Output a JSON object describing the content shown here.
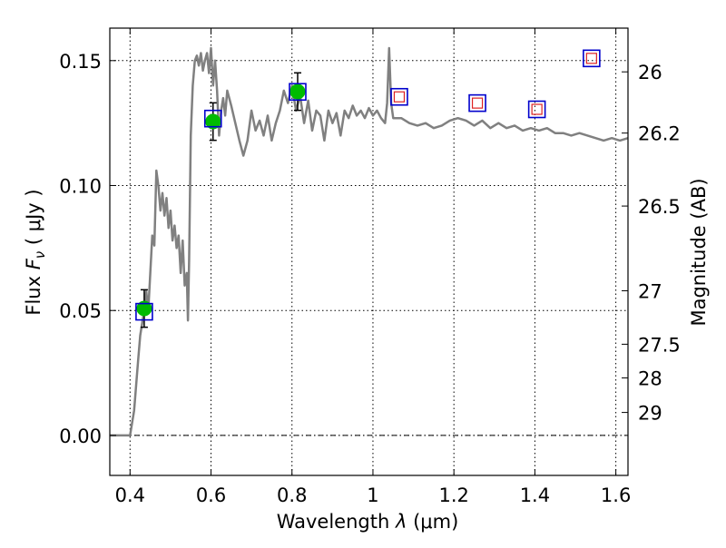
{
  "chart_data": {
    "type": "scatter",
    "xlabel_prefix": "Wavelength ",
    "xlabel_symbol": "λ",
    "xlabel_unit": " (μm)",
    "ylabel_prefix": "Flux ",
    "ylabel_symbol": "F",
    "ylabel_subscript": "ν",
    "ylabel_unit": " ( μJy )",
    "y2label": "Magnitude (AB)",
    "xlim": [
      0.35,
      1.63
    ],
    "ylim": [
      -0.016,
      0.163
    ],
    "x_ticks": [
      0.4,
      0.6,
      0.8,
      1.0,
      1.2,
      1.4,
      1.6
    ],
    "x_tick_labels": [
      "0.4",
      "0.6",
      "0.8",
      "1",
      "1.2",
      "1.4",
      "1.6"
    ],
    "y_ticks": [
      0.0,
      0.05,
      0.1,
      0.15
    ],
    "y_tick_labels": [
      "0.00",
      "0.05",
      "0.10",
      "0.15"
    ],
    "y2_ticks": [
      {
        "label": "26",
        "flux": 0.1455
      },
      {
        "label": "26.2",
        "flux": 0.121
      },
      {
        "label": "26.5",
        "flux": 0.0918
      },
      {
        "label": "27",
        "flux": 0.0579
      },
      {
        "label": "27.5",
        "flux": 0.0365
      },
      {
        "label": "28",
        "flux": 0.023
      },
      {
        "label": "29",
        "flux": 0.0092
      }
    ],
    "grid": true,
    "grid_style": "dotted",
    "zero_line": true,
    "colors": {
      "model": "#808080",
      "observed": "#00bb00",
      "model_box": "#0000cc",
      "upper_box": "#dd2222",
      "errorbar": "#000000"
    },
    "series": [
      {
        "kind": "model_sed",
        "x": [
          0.35,
          0.4,
          0.41,
          0.415,
          0.42,
          0.425,
          0.43,
          0.435,
          0.44,
          0.445,
          0.45,
          0.455,
          0.46,
          0.465,
          0.47,
          0.475,
          0.48,
          0.485,
          0.49,
          0.495,
          0.5,
          0.505,
          0.51,
          0.515,
          0.52,
          0.525,
          0.53,
          0.535,
          0.54,
          0.543,
          0.546,
          0.55,
          0.555,
          0.56,
          0.565,
          0.57,
          0.575,
          0.58,
          0.585,
          0.59,
          0.595,
          0.6,
          0.605,
          0.61,
          0.615,
          0.62,
          0.625,
          0.63,
          0.635,
          0.64,
          0.65,
          0.66,
          0.67,
          0.68,
          0.69,
          0.7,
          0.71,
          0.72,
          0.73,
          0.74,
          0.75,
          0.76,
          0.77,
          0.78,
          0.79,
          0.8,
          0.81,
          0.82,
          0.83,
          0.84,
          0.85,
          0.86,
          0.87,
          0.88,
          0.89,
          0.9,
          0.91,
          0.92,
          0.93,
          0.94,
          0.95,
          0.96,
          0.97,
          0.98,
          0.99,
          1.0,
          1.01,
          1.02,
          1.03,
          1.035,
          1.04,
          1.045,
          1.05,
          1.07,
          1.09,
          1.11,
          1.13,
          1.15,
          1.17,
          1.19,
          1.21,
          1.23,
          1.25,
          1.27,
          1.29,
          1.31,
          1.33,
          1.35,
          1.37,
          1.39,
          1.41,
          1.43,
          1.45,
          1.47,
          1.49,
          1.51,
          1.53,
          1.55,
          1.57,
          1.59,
          1.61,
          1.63
        ],
        "y": [
          0.0,
          0.0,
          0.01,
          0.02,
          0.03,
          0.04,
          0.045,
          0.05,
          0.058,
          0.05,
          0.065,
          0.08,
          0.076,
          0.106,
          0.1,
          0.09,
          0.097,
          0.088,
          0.095,
          0.083,
          0.09,
          0.078,
          0.084,
          0.075,
          0.08,
          0.065,
          0.078,
          0.06,
          0.065,
          0.046,
          0.07,
          0.12,
          0.14,
          0.15,
          0.152,
          0.148,
          0.153,
          0.146,
          0.15,
          0.153,
          0.145,
          0.155,
          0.14,
          0.15,
          0.138,
          0.12,
          0.13,
          0.135,
          0.128,
          0.138,
          0.132,
          0.125,
          0.118,
          0.112,
          0.118,
          0.13,
          0.122,
          0.126,
          0.12,
          0.128,
          0.118,
          0.125,
          0.13,
          0.138,
          0.133,
          0.14,
          0.13,
          0.136,
          0.125,
          0.134,
          0.122,
          0.13,
          0.128,
          0.118,
          0.13,
          0.125,
          0.129,
          0.12,
          0.13,
          0.127,
          0.132,
          0.128,
          0.13,
          0.127,
          0.131,
          0.128,
          0.13,
          0.127,
          0.125,
          0.133,
          0.155,
          0.133,
          0.127,
          0.127,
          0.125,
          0.124,
          0.125,
          0.123,
          0.124,
          0.126,
          0.127,
          0.126,
          0.124,
          0.126,
          0.123,
          0.125,
          0.123,
          0.124,
          0.122,
          0.123,
          0.122,
          0.123,
          0.121,
          0.121,
          0.12,
          0.121,
          0.12,
          0.119,
          0.118,
          0.119,
          0.118,
          0.119
        ]
      },
      {
        "kind": "observed",
        "x": [
          0.435,
          0.605,
          0.814
        ],
        "y": [
          0.0508,
          0.1256,
          0.1376
        ],
        "yerr": [
          0.0075,
          0.0075,
          0.0075
        ]
      },
      {
        "kind": "model_boxes",
        "x": [
          0.435,
          0.605,
          0.814,
          1.065,
          1.258,
          1.405,
          1.54
        ],
        "y": [
          0.0495,
          0.1268,
          0.1375,
          0.1355,
          0.133,
          0.1305,
          0.1509
        ]
      },
      {
        "kind": "upper_limits",
        "x": [
          1.065,
          1.258,
          1.405,
          1.54
        ],
        "y": [
          0.1355,
          0.133,
          0.1305,
          0.1509
        ]
      }
    ]
  }
}
